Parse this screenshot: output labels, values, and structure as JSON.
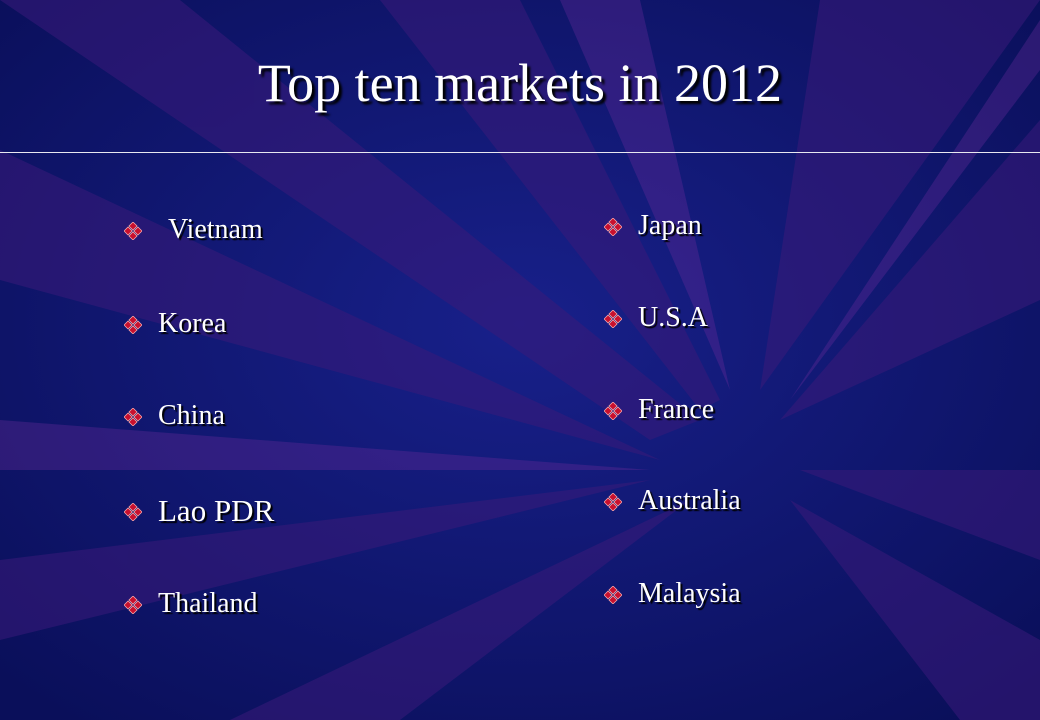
{
  "title": "Top ten markets in 2012",
  "left_list": [
    "Vietnam",
    "Korea",
    "China",
    "Lao PDR",
    "Thailand"
  ],
  "right_list": [
    "Japan",
    "U.S.A",
    "France",
    "Australia",
    "Malaysia"
  ]
}
